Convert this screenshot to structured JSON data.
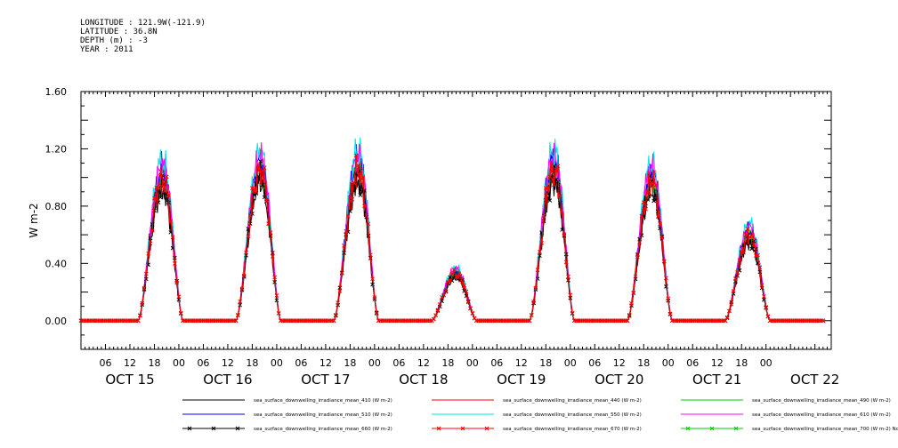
{
  "header": {
    "longitude": "LONGITUDE : 121.9W(-121.9)",
    "latitude": "LATITUDE : 36.8N",
    "depth": "DEPTH (m) : -3",
    "year": "YEAR : 2011"
  },
  "chart_data": {
    "type": "line",
    "ylabel": "W m-2",
    "ylim": [
      -0.2,
      1.6
    ],
    "yticks": [
      "0.00",
      "0.40",
      "0.80",
      "1.20",
      "1.60"
    ],
    "y_tick_values": [
      0.0,
      0.4,
      0.8,
      1.2,
      1.6
    ],
    "x_hour_labels": [
      "06",
      "12",
      "18",
      "00",
      "06",
      "12",
      "18",
      "00",
      "06",
      "12",
      "18",
      "00",
      "06",
      "12",
      "18",
      "00",
      "06",
      "12",
      "18",
      "00",
      "06",
      "12",
      "18",
      "00",
      "06",
      "12",
      "18",
      "00"
    ],
    "x_day_labels": [
      "OCT 15",
      "OCT 16",
      "OCT 17",
      "OCT 18",
      "OCT 19",
      "OCT 20",
      "OCT 21",
      "OCT 22"
    ],
    "x_range_hours": [
      0,
      184
    ],
    "series": [
      {
        "name": "sea_surface_downwelling_irradiance_mean_410 (W m-2)",
        "color": "#000000",
        "marker": "none",
        "scale": 0.93
      },
      {
        "name": "sea_surface_downwelling_irradiance_mean_440 (W m-2)",
        "color": "#ff0000",
        "marker": "none",
        "scale": 0.98
      },
      {
        "name": "sea_surface_downwelling_irradiance_mean_490 (W m-2)",
        "color": "#00cc00",
        "marker": "none",
        "scale": 1.04
      },
      {
        "name": "sea_surface_downwelling_irradiance_mean_510 (W m-2)",
        "color": "#0000ff",
        "marker": "none",
        "scale": 1.06
      },
      {
        "name": "sea_surface_downwelling_irradiance_mean_550 (W m-2)",
        "color": "#00e5e5",
        "marker": "none",
        "scale": 1.12
      },
      {
        "name": "sea_surface_downwelling_irradiance_mean_610 (W m-2)",
        "color": "#ff00ff",
        "marker": "none",
        "scale": 1.08
      },
      {
        "name": "sea_surface_downwelling_irradiance_mean_660 (W m-2)",
        "color": "#000000",
        "marker": "x",
        "scale": 0.95
      },
      {
        "name": "sea_surface_downwelling_irradiance_mean_670 (W m-2)",
        "color": "#ff0000",
        "marker": "x",
        "scale": 1.0
      },
      {
        "name": "sea_surface_downwelling_irradiance_mean_700 (W m-2) No Valid Data",
        "color": "#00cc00",
        "marker": "x",
        "scale": 0
      }
    ],
    "day_peaks": [
      {
        "day": "OCT 15",
        "start_hour": 14,
        "peak_hour": 20,
        "end_hour": 25,
        "peak": 1.0
      },
      {
        "day": "OCT 16",
        "start_hour": 38,
        "peak_hour": 44,
        "end_hour": 49,
        "peak": 1.05
      },
      {
        "day": "OCT 17",
        "start_hour": 62,
        "peak_hour": 68,
        "end_hour": 73,
        "peak": 1.06
      },
      {
        "day": "OCT 18",
        "start_hour": 86,
        "peak_hour": 92,
        "end_hour": 97,
        "peak": 0.33
      },
      {
        "day": "OCT 19",
        "start_hour": 110,
        "peak_hour": 116,
        "end_hour": 121,
        "peak": 1.06
      },
      {
        "day": "OCT 20",
        "start_hour": 134,
        "peak_hour": 140,
        "end_hour": 145,
        "peak": 0.98
      },
      {
        "day": "OCT 21",
        "start_hour": 158,
        "peak_hour": 164,
        "end_hour": 169,
        "peak": 0.6
      }
    ]
  }
}
